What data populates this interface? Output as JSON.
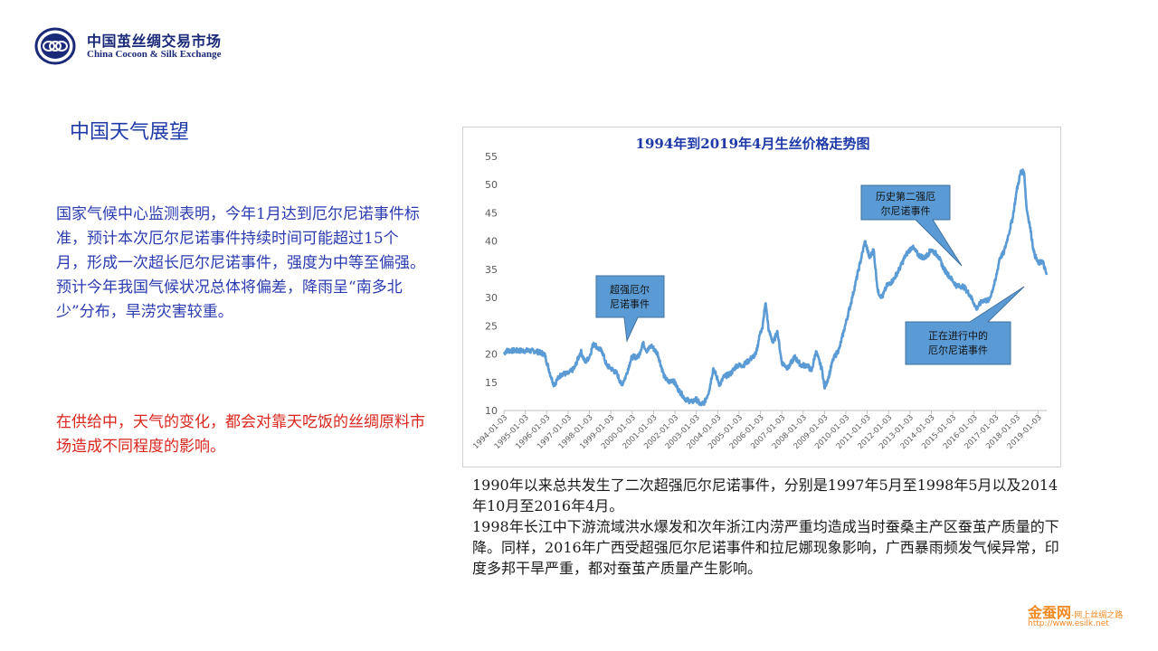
{
  "header": {
    "logo_cn": "中国茧丝绸交易市场",
    "logo_en": "China Cocoon & Silk Exchange"
  },
  "slide": {
    "title": "中国天气展望",
    "paragraph_blue": [
      "国家气候中心监测表明，今年1月达到厄尔尼诺事件标准，预计本次厄尔尼诺事件持续时间可能超过15个月，形成一次超长厄尔尼诺事件，强度为中等至偏强。",
      "预计今年我国气候状况总体将偏差，降雨呈“南多北少”分布，旱涝灾害较重。"
    ],
    "paragraph_red": "在供给中，天气的变化，都会对靠天吃饭的丝绸原料市场造成不同程度的影响。",
    "note": [
      "1990年以来总共发生了二次超强厄尔尼诺事件，分别是1997年5月至1998年5月以及2014年10月至2016年4月。",
      "1998年长江中下游流域洪水爆发和次年浙江内涝严重均造成当时蚕桑主产区蚕茧产质量的下降。同样，2016年广西受超强厄尔尼诺事件和拉尼娜现象影响，广西暴雨频发气候异常，印度多邦干旱严重，都对蚕茧产质量产生影响。"
    ]
  },
  "chart_data": {
    "type": "line",
    "title": "1994年到2019年4月生丝价格走势图",
    "xlabel": "",
    "ylabel": "",
    "ylim": [
      10,
      55
    ],
    "yticks": [
      10,
      15,
      20,
      25,
      30,
      35,
      40,
      45,
      50,
      55
    ],
    "xticks": [
      "1994-01-03",
      "1995-01-03",
      "1996-01-03",
      "1997-01-03",
      "1998-01-03",
      "1999-01-03",
      "2000-01-03",
      "2001-01-03",
      "2002-01-03",
      "2003-01-03",
      "2004-01-03",
      "2005-01-03",
      "2006-01-03",
      "2007-01-03",
      "2008-01-03",
      "2009-01-03",
      "2010-01-03",
      "2011-01-03",
      "2012-01-03",
      "2013-01-03",
      "2014-01-03",
      "2015-01-03",
      "2016-01-03",
      "2017-01-03",
      "2018-01-03",
      "2019-01-03"
    ],
    "xrange": [
      1994.0,
      2019.4
    ],
    "series_color": "#5b9bd5",
    "x": [
      1994.0,
      1994.1,
      1994.5,
      1995.0,
      1995.5,
      1995.9,
      1996.2,
      1996.35,
      1996.5,
      1996.7,
      1997.0,
      1997.3,
      1997.6,
      1997.8,
      1998.0,
      1998.2,
      1998.4,
      1998.6,
      1998.8,
      1999.0,
      1999.3,
      1999.5,
      1999.7,
      1999.9,
      2000.0,
      2000.3,
      2000.5,
      2000.7,
      2000.9,
      2001.2,
      2001.5,
      2001.7,
      2001.9,
      2002.2,
      2002.5,
      2002.8,
      2003.0,
      2003.2,
      2003.4,
      2003.6,
      2003.8,
      2004.0,
      2004.1,
      2004.3,
      2004.6,
      2004.9,
      2005.2,
      2005.5,
      2005.8,
      2006.0,
      2006.1,
      2006.2,
      2006.25,
      2006.4,
      2006.6,
      2006.8,
      2007.0,
      2007.3,
      2007.6,
      2007.9,
      2008.2,
      2008.4,
      2008.6,
      2008.9,
      2009.0,
      2009.2,
      2009.4,
      2009.7,
      2010.0,
      2010.3,
      2010.6,
      2010.9,
      2011.1,
      2011.3,
      2011.5,
      2011.7,
      2011.9,
      2012.2,
      2012.5,
      2012.8,
      2013.1,
      2013.4,
      2013.7,
      2014.0,
      2014.3,
      2014.6,
      2014.9,
      2015.2,
      2015.5,
      2015.8,
      2016.0,
      2016.1,
      2016.4,
      2016.7,
      2017.0,
      2017.2,
      2017.4,
      2017.6,
      2017.8,
      2018.0,
      2018.2,
      2018.35,
      2018.45,
      2018.6,
      2018.8,
      2019.0,
      2019.2,
      2019.4
    ],
    "values": [
      20.0,
      20.6,
      20.6,
      20.6,
      20.5,
      20.0,
      16.0,
      14.5,
      15.5,
      16.5,
      16.5,
      17.5,
      20.5,
      18.5,
      19.5,
      22.0,
      21.0,
      20.5,
      18.0,
      17.5,
      16.5,
      14.5,
      16.0,
      18.5,
      19.5,
      19.5,
      22.0,
      20.5,
      21.5,
      20.0,
      16.0,
      15.0,
      15.5,
      13.5,
      12.0,
      11.5,
      12.0,
      11.0,
      11.5,
      13.5,
      17.5,
      15.5,
      14.5,
      16.0,
      16.5,
      18.0,
      18.0,
      19.0,
      20.0,
      24.0,
      24.5,
      28.0,
      29.0,
      24.0,
      22.0,
      24.0,
      18.5,
      17.5,
      19.5,
      18.0,
      18.0,
      17.0,
      20.5,
      17.0,
      14.0,
      16.0,
      19.0,
      21.0,
      25.5,
      30.0,
      35.0,
      40.0,
      37.0,
      38.5,
      31.0,
      30.0,
      32.0,
      33.0,
      35.0,
      37.5,
      39.0,
      37.5,
      37.0,
      38.5,
      37.5,
      35.0,
      33.5,
      32.0,
      32.0,
      30.5,
      29.0,
      28.0,
      29.5,
      29.5,
      33.0,
      37.0,
      38.0,
      41.0,
      44.0,
      49.0,
      52.5,
      52.0,
      46.0,
      43.0,
      38.0,
      36.0,
      36.5,
      34.0
    ],
    "annotations": [
      {
        "text": "超强厄尔尼诺事件",
        "lines": [
          "超强厄尔",
          "尼诺事件"
        ]
      },
      {
        "text": "历史第二强厄尔尼诺事件",
        "lines": [
          "历史第二强厄",
          "尔尼诺事件"
        ]
      },
      {
        "text": "正在进行中的厄尔尼诺事件",
        "lines": [
          "正在进行中的",
          "厄尔尼诺事件"
        ]
      }
    ]
  },
  "footer": {
    "brand": "金蚕网",
    "tagline": "-网上丝绸之路",
    "url": "http://www.esilk.net"
  }
}
